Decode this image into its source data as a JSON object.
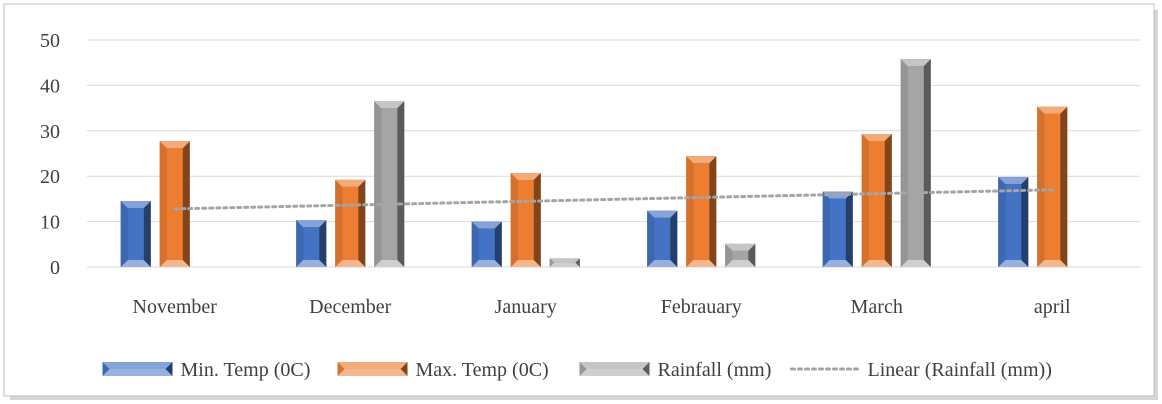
{
  "chart_data": {
    "type": "bar",
    "title": "",
    "xlabel": "",
    "ylabel": "",
    "categories": [
      "November",
      "December",
      "January",
      "Febrauary",
      "March",
      "april"
    ],
    "ylim": [
      0,
      50
    ],
    "yticks": [
      "0",
      "10",
      "20",
      "30",
      "40",
      "50"
    ],
    "grid": true,
    "legend_position": "bottom",
    "series": [
      {
        "name": "Min. Temp (0C)",
        "values": [
          14.5,
          10.3,
          10.0,
          12.4,
          16.6,
          19.8
        ],
        "color": "#4472c4"
      },
      {
        "name": "Max. Temp (0C)",
        "values": [
          27.7,
          19.2,
          20.7,
          24.4,
          29.3,
          35.3
        ],
        "color": "#ed7d31"
      },
      {
        "name": "Rainfall (mm)",
        "values": [
          0,
          36.5,
          1.9,
          5.1,
          45.8,
          0
        ],
        "color": "#a5a5a5"
      }
    ],
    "trendline": {
      "name": "Linear (Rainfall (mm))",
      "type": "linear",
      "of_series": "Rainfall (mm)",
      "color": "#a5a5a5",
      "style": "dotted",
      "start_value": 12.8,
      "end_value": 17.0
    }
  }
}
